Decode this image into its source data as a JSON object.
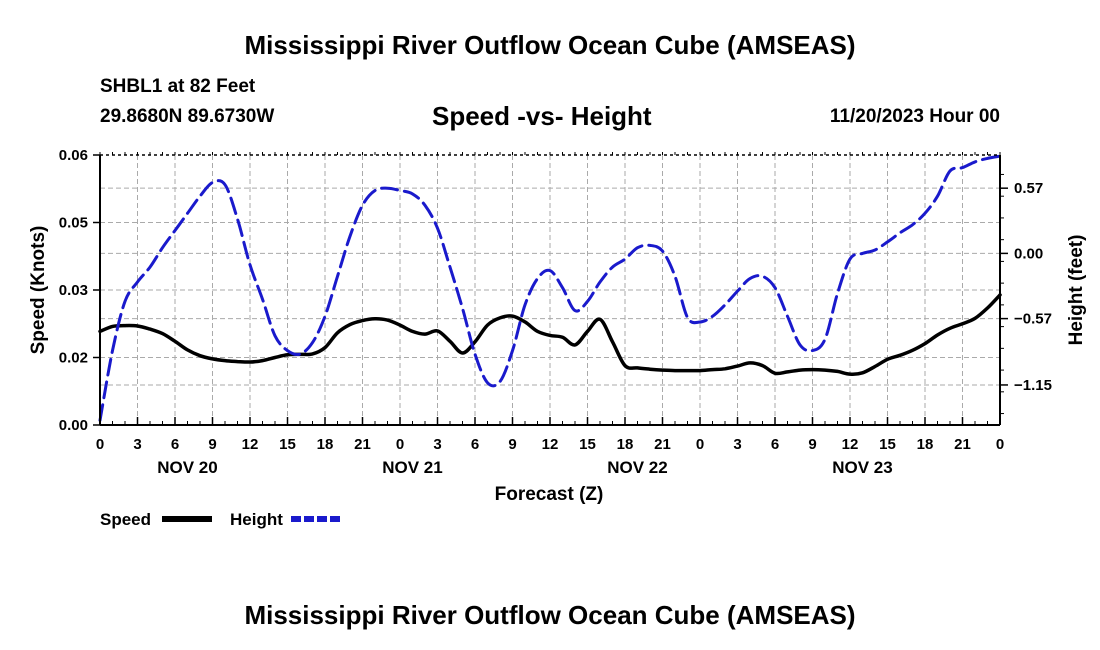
{
  "title": "Mississippi River Outflow Ocean Cube (AMSEAS)",
  "station": "SHBL1 at 82 Feet",
  "location": "29.8680N  89.6730W",
  "datetime": "11/20/2023 Hour 00",
  "footer_title": "Mississippi River Outflow Ocean Cube (AMSEAS)",
  "legend": {
    "speed_label": "Speed",
    "height_label": "Height"
  },
  "colors": {
    "speed": "#000000",
    "height": "#1a1acc",
    "grid": "#aaaaaa"
  },
  "chart_data": {
    "type": "line",
    "title": "Speed -vs- Height",
    "xlabel": "Forecast (Z)",
    "ylabel": "Speed (Knots)",
    "y2label": "Height (feet)",
    "xlim": [
      0,
      72
    ],
    "ylim": [
      0,
      0.06
    ],
    "y2lim": [
      -1.5,
      0.86
    ],
    "x_ticks": [
      0,
      3,
      6,
      9,
      12,
      15,
      18,
      21,
      24,
      27,
      30,
      33,
      36,
      39,
      42,
      45,
      48,
      51,
      54,
      57,
      60,
      63,
      66,
      69,
      72
    ],
    "x_tick_labels": [
      "0",
      "3",
      "6",
      "9",
      "12",
      "15",
      "18",
      "21",
      "0",
      "3",
      "6",
      "9",
      "12",
      "15",
      "18",
      "21",
      "0",
      "3",
      "6",
      "9",
      "12",
      "15",
      "18",
      "21",
      "0"
    ],
    "day_labels": [
      {
        "label": "NOV 20",
        "hour": 7
      },
      {
        "label": "NOV 21",
        "hour": 25
      },
      {
        "label": "NOV 22",
        "hour": 43
      },
      {
        "label": "NOV 23",
        "hour": 61
      }
    ],
    "y_ticks": [
      0,
      0.02,
      0.03,
      0.05,
      0.06
    ],
    "y_tick_labels": [
      "0.00",
      "0.02",
      "0.03",
      "0.05",
      "0.06"
    ],
    "y_tick_values": [
      0,
      0.015,
      0.03,
      0.045,
      0.06
    ],
    "y2_ticks": [
      0.57,
      0.0,
      -0.57,
      -1.15
    ],
    "y2_tick_labels": [
      "0.57",
      "0.00",
      "−0.57",
      "−1.15"
    ],
    "series": [
      {
        "name": "Speed",
        "axis": "left",
        "style": "solid",
        "x": [
          0,
          1,
          2,
          3,
          4,
          5,
          6,
          7,
          8,
          9,
          10,
          11,
          12,
          13,
          14,
          15,
          16,
          17,
          18,
          19,
          20,
          21,
          22,
          23,
          24,
          25,
          26,
          27,
          28,
          29,
          30,
          31,
          32,
          33,
          34,
          35,
          36,
          37,
          38,
          39,
          40,
          41,
          42,
          43,
          44,
          45,
          46,
          47,
          48,
          49,
          50,
          51,
          52,
          53,
          54,
          55,
          56,
          57,
          58,
          59,
          60,
          61,
          62,
          63,
          64,
          65,
          66,
          67,
          68,
          69,
          70,
          71,
          72
        ],
        "values": [
          0.0208,
          0.0219,
          0.0221,
          0.022,
          0.0213,
          0.0203,
          0.0186,
          0.0167,
          0.0154,
          0.0147,
          0.0143,
          0.0141,
          0.014,
          0.0143,
          0.015,
          0.0156,
          0.0157,
          0.0158,
          0.0172,
          0.0205,
          0.0223,
          0.0232,
          0.0236,
          0.0233,
          0.0222,
          0.0208,
          0.0202,
          0.0209,
          0.0186,
          0.016,
          0.0185,
          0.0222,
          0.0238,
          0.0242,
          0.0229,
          0.0208,
          0.0199,
          0.0195,
          0.0178,
          0.0208,
          0.0235,
          0.0185,
          0.0132,
          0.0127,
          0.0124,
          0.0122,
          0.0121,
          0.0121,
          0.0121,
          0.0123,
          0.0125,
          0.0131,
          0.0138,
          0.0132,
          0.0115,
          0.0118,
          0.0122,
          0.0123,
          0.0122,
          0.0119,
          0.0113,
          0.0116,
          0.013,
          0.0146,
          0.0155,
          0.0166,
          0.0181,
          0.02,
          0.0215,
          0.0225,
          0.0237,
          0.026,
          0.0289
        ]
      },
      {
        "name": "Height",
        "axis": "right",
        "style": "dashed",
        "x": [
          0,
          1,
          2,
          3,
          4,
          5,
          6,
          7,
          8,
          9,
          10,
          11,
          12,
          13,
          14,
          15,
          16,
          17,
          18,
          19,
          20,
          21,
          22,
          23,
          24,
          25,
          26,
          27,
          28,
          29,
          30,
          31,
          32,
          33,
          34,
          35,
          36,
          37,
          38,
          39,
          40,
          41,
          42,
          43,
          44,
          45,
          46,
          47,
          48,
          49,
          50,
          51,
          52,
          53,
          54,
          55,
          56,
          57,
          58,
          59,
          60,
          61,
          62,
          63,
          64,
          65,
          66,
          67,
          68,
          69,
          70,
          71,
          72
        ],
        "values": [
          -1.46,
          -0.85,
          -0.42,
          -0.25,
          -0.12,
          0.05,
          0.2,
          0.35,
          0.5,
          0.62,
          0.6,
          0.3,
          -0.1,
          -0.4,
          -0.72,
          -0.85,
          -0.88,
          -0.78,
          -0.55,
          -0.2,
          0.15,
          0.42,
          0.55,
          0.57,
          0.55,
          0.52,
          0.42,
          0.22,
          -0.12,
          -0.48,
          -0.88,
          -1.13,
          -1.12,
          -0.85,
          -0.45,
          -0.22,
          -0.15,
          -0.3,
          -0.5,
          -0.42,
          -0.25,
          -0.12,
          -0.05,
          0.05,
          0.07,
          0.02,
          -0.2,
          -0.56,
          -0.6,
          -0.55,
          -0.45,
          -0.33,
          -0.22,
          -0.2,
          -0.3,
          -0.55,
          -0.8,
          -0.85,
          -0.75,
          -0.35,
          -0.05,
          0.0,
          0.03,
          0.1,
          0.18,
          0.25,
          0.35,
          0.5,
          0.72,
          0.75,
          0.8,
          0.83,
          0.85
        ]
      }
    ]
  }
}
